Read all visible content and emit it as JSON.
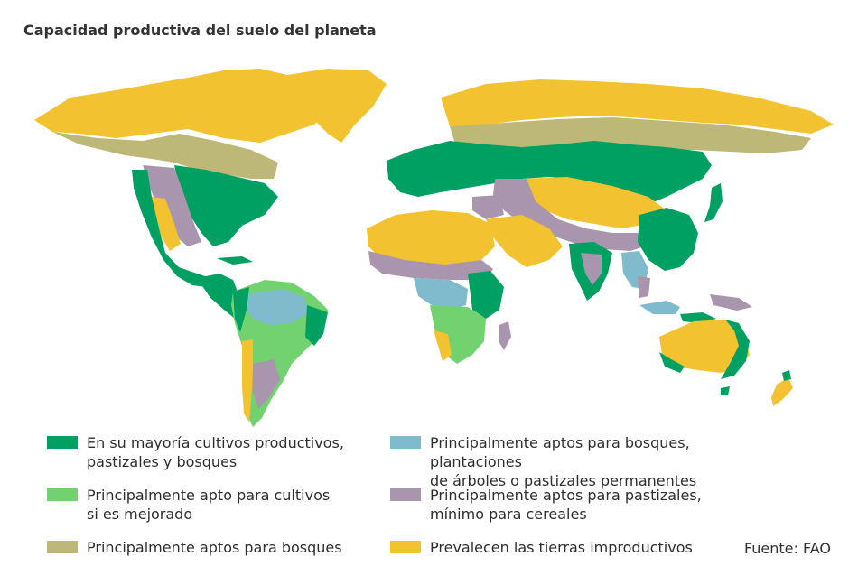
{
  "title": "Capacidad productiva del suelo del planeta",
  "source": "Fuente: FAO",
  "colors": {
    "productive": "#00a062",
    "improvable": "#72d26f",
    "forest": "#bdb877",
    "forest_permanent": "#7fbbcc",
    "pasture": "#a995ad",
    "unproductive": "#f3c230"
  },
  "legend": [
    {
      "key": "productive",
      "label": "En su mayoría cultivos productivos,\npastizales y bosques",
      "color": "#00a062"
    },
    {
      "key": "improvable",
      "label": "Principalmente apto para cultivos\nsi es mejorado",
      "color": "#72d26f"
    },
    {
      "key": "forest",
      "label": "Principalmente aptos para bosques",
      "color": "#bdb877"
    },
    {
      "key": "forest_permanent",
      "label": "Principalmente aptos para bosques, plantaciones\nde árboles o pastizales permanentes",
      "color": "#7fbbcc"
    },
    {
      "key": "pasture",
      "label": "Principalmente aptos para pastizales,\nmínimo para cereales",
      "color": "#a995ad"
    },
    {
      "key": "unproductive",
      "label": "Prevalecen las tierras improductivos",
      "color": "#f3c230"
    }
  ]
}
